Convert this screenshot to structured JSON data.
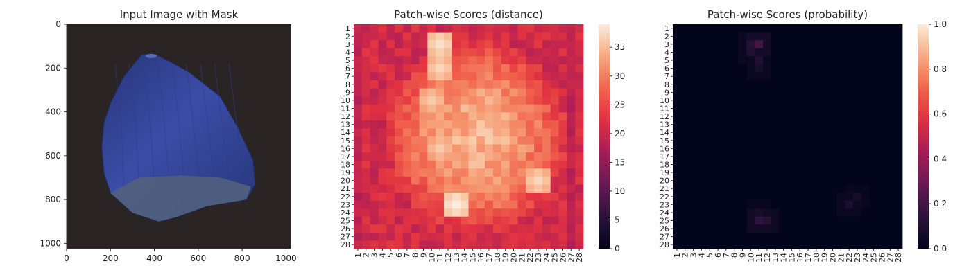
{
  "chart_data": [
    {
      "type": "image",
      "title": "Input Image with Mask",
      "xlim": [
        0,
        1024
      ],
      "ylim": [
        1024,
        0
      ],
      "xticks": [
        0,
        200,
        400,
        600,
        800,
        1000
      ],
      "yticks": [
        0,
        200,
        400,
        600,
        800,
        1000
      ],
      "colors": {
        "background": "#2a2424",
        "shell": "#3b4da6",
        "shell_dark": "#263579",
        "base": "#52617d"
      }
    },
    {
      "type": "heatmap",
      "title": "Patch-wise Scores (distance)",
      "rows": 28,
      "cols": 28,
      "colorbar": {
        "min": 0,
        "max": 39,
        "ticks": [
          0,
          5,
          10,
          15,
          20,
          25,
          30,
          35
        ]
      },
      "colormap": "rocket",
      "description_pattern": "high values (~30-38) in hazelnut-shaped central region, ~20-25 around edges",
      "hotspots": [
        {
          "row": 3,
          "col": 11,
          "value": 38
        },
        {
          "row": 6,
          "col": 11,
          "value": 37
        },
        {
          "row": 10,
          "col": 10,
          "value": 36
        },
        {
          "row": 16,
          "col": 11,
          "value": 36
        },
        {
          "row": 20,
          "col": 23,
          "value": 37
        },
        {
          "row": 23,
          "col": 13,
          "value": 39
        }
      ]
    },
    {
      "type": "heatmap",
      "title": "Patch-wise Scores (probability)",
      "rows": 28,
      "cols": 28,
      "colorbar": {
        "min": 0.0,
        "max": 1.0,
        "ticks": [
          "0.0",
          "0.2",
          "0.4",
          "0.6",
          "0.8",
          "1.0"
        ]
      },
      "colormap": "rocket",
      "hotspots": [
        {
          "row": 3,
          "col": 11,
          "value": 0.2
        },
        {
          "row": 3,
          "col": 10,
          "value": 0.12
        },
        {
          "row": 4,
          "col": 10,
          "value": 0.1
        },
        {
          "row": 5,
          "col": 11,
          "value": 0.1
        },
        {
          "row": 6,
          "col": 11,
          "value": 0.08
        },
        {
          "row": 22,
          "col": 23,
          "value": 0.07
        },
        {
          "row": 23,
          "col": 22,
          "value": 0.09
        },
        {
          "row": 25,
          "col": 11,
          "value": 0.15
        },
        {
          "row": 25,
          "col": 12,
          "value": 0.13
        },
        {
          "row": 24,
          "col": 11,
          "value": 0.07
        }
      ]
    }
  ]
}
